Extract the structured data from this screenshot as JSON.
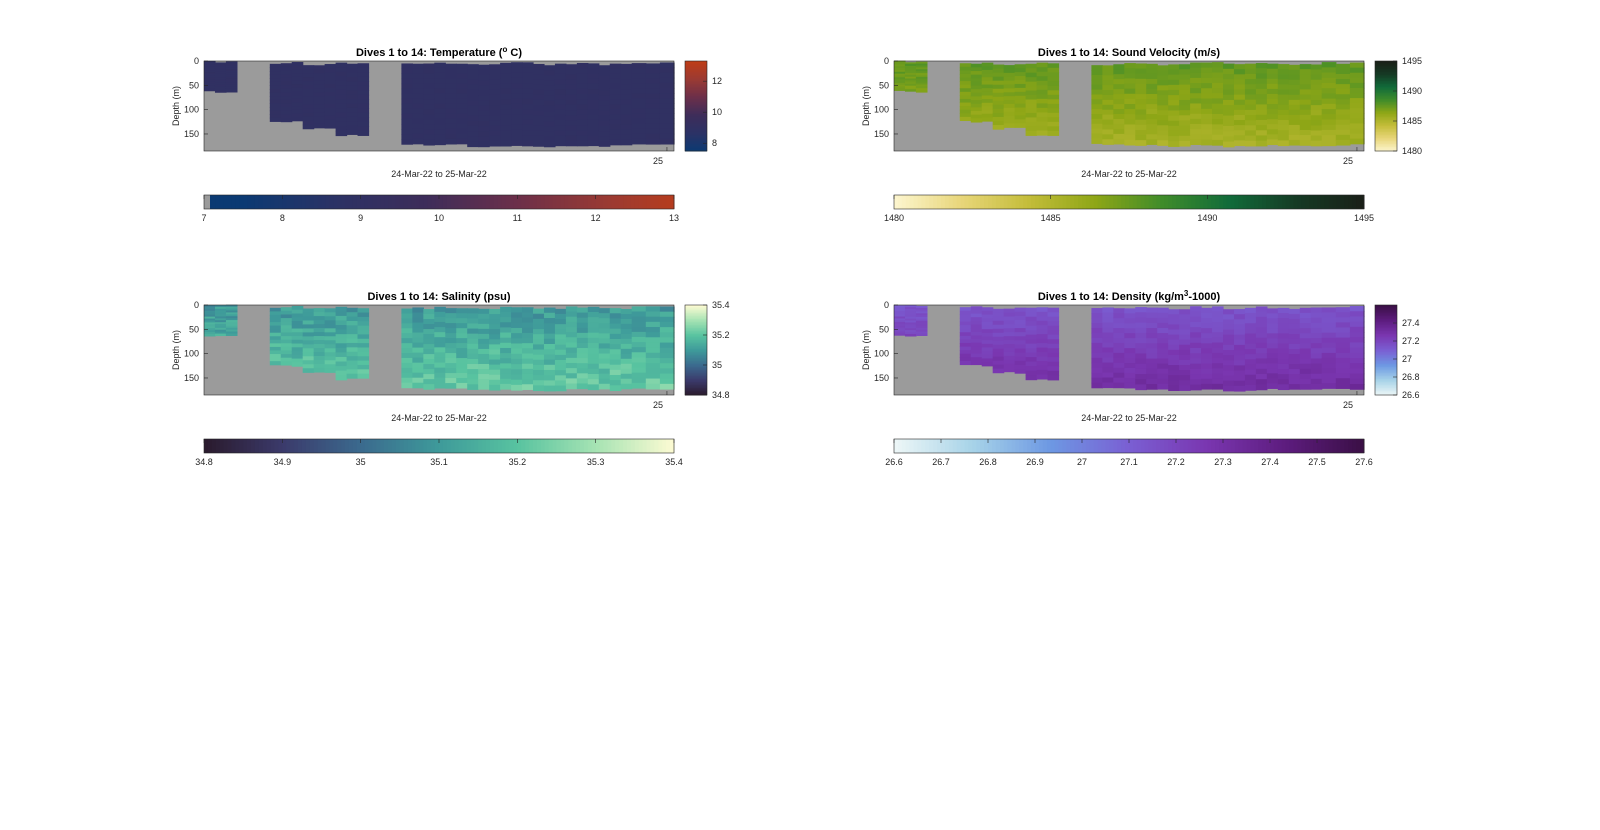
{
  "chart_data": [
    {
      "type": "heatmap",
      "variable": "temperature",
      "title": "Dives 1 to 14: Temperature (",
      "title_sup": "o",
      "title_suffix": " C)",
      "xlabel": "24-Mar-22 to 25-Mar-22",
      "ylabel": "Depth (m)",
      "xtick_label": "25",
      "yticks": [
        0,
        50,
        100,
        150
      ],
      "ylim": [
        0,
        185
      ],
      "colorbar_right_ticks": [
        8,
        10,
        12
      ],
      "colorbar_right_range": [
        7.5,
        13.3
      ],
      "colorbar_bottom_ticks": [
        7,
        8,
        9,
        10,
        11,
        12,
        13
      ],
      "colorbar_bottom_range": [
        7,
        13
      ],
      "nodata_color": "#9b9b9b",
      "colormap": [
        "#0b3a73",
        "#2b3265",
        "#3d2d5a",
        "#6b2f4a",
        "#9a3a33",
        "#bf3d17"
      ],
      "base_value": 9.0
    },
    {
      "type": "heatmap",
      "variable": "sound_velocity",
      "title": "Dives 1 to 14: Sound Velocity (m/s)",
      "xlabel": "24-Mar-22 to 25-Mar-22",
      "ylabel": "Depth (m)",
      "xtick_label": "25",
      "yticks": [
        0,
        50,
        100,
        150
      ],
      "ylim": [
        0,
        185
      ],
      "colorbar_right_ticks": [
        1480,
        1485,
        1490,
        1495
      ],
      "colorbar_right_range": [
        1480,
        1495
      ],
      "colorbar_bottom_ticks": [
        1480,
        1485,
        1490,
        1495
      ],
      "colorbar_bottom_range": [
        1480,
        1495
      ],
      "nodata_color": "#9b9b9b",
      "colormap": [
        "#fdf6cf",
        "#e8d67a",
        "#c4bd3a",
        "#8ea616",
        "#3f8c2a",
        "#116b3a",
        "#153a24",
        "#1a1f18"
      ],
      "base_value": 1486.3
    },
    {
      "type": "heatmap",
      "variable": "salinity",
      "title": "Dives 1 to 14: Salinity (psu)",
      "xlabel": "24-Mar-22 to 25-Mar-22",
      "ylabel": "Depth (m)",
      "xtick_label": "25",
      "yticks": [
        0,
        50,
        100,
        150
      ],
      "ylim": [
        0,
        185
      ],
      "colorbar_right_ticks": [
        34.8,
        35,
        35.2,
        35.4
      ],
      "colorbar_right_range": [
        34.8,
        35.4
      ],
      "colorbar_bottom_ticks": [
        34.8,
        34.9,
        35,
        35.1,
        35.2,
        35.3,
        35.4
      ],
      "colorbar_bottom_range": [
        34.8,
        35.4
      ],
      "nodata_color": "#9b9b9b",
      "colormap": [
        "#2a1a2c",
        "#3b3a6b",
        "#3b6a8e",
        "#3e9a9a",
        "#58c3a0",
        "#a6e3b3",
        "#fdfbd3"
      ],
      "base_value": 35.15
    },
    {
      "type": "heatmap",
      "variable": "density",
      "title": "Dives 1 to 14: Density (kg/m",
      "title_sup": "3",
      "title_suffix": "-1000)",
      "xlabel": "24-Mar-22 to 25-Mar-22",
      "ylabel": "Depth (m)",
      "xtick_label": "25",
      "yticks": [
        0,
        50,
        100,
        150
      ],
      "ylim": [
        0,
        185
      ],
      "colorbar_right_ticks": [
        26.6,
        26.8,
        27,
        27.2,
        27.4
      ],
      "colorbar_right_range": [
        26.6,
        27.6
      ],
      "colorbar_bottom_ticks": [
        26.6,
        26.7,
        26.8,
        26.9,
        27,
        27.1,
        27.2,
        27.3,
        27.4,
        27.5,
        27.6
      ],
      "colorbar_bottom_range": [
        26.6,
        27.6
      ],
      "nodata_color": "#9b9b9b",
      "colormap": [
        "#eef7f7",
        "#a7d3e8",
        "#6d98e3",
        "#7a5fd3",
        "#7a36b0",
        "#5d1c7e",
        "#3a0f45"
      ],
      "base_value": 27.22
    }
  ]
}
